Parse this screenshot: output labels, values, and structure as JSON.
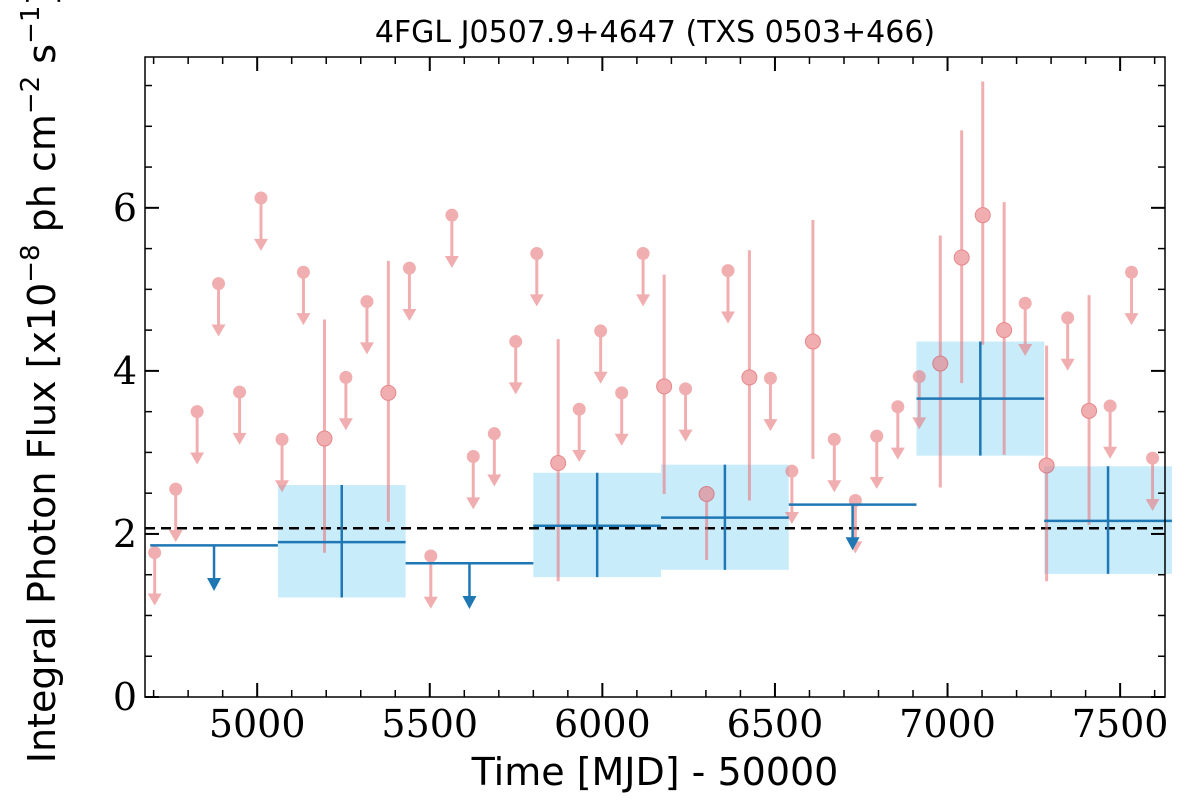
{
  "chart_data": {
    "type": "scatter",
    "title": "4FGL J0507.9+4647 (TXS 0503+466)",
    "xlabel": "Time [MJD] - 50000",
    "ylabel_parts": [
      "Integral Photon Flux [x10",
      "−8",
      " ph cm",
      "−2",
      " s",
      "−1",
      "]"
    ],
    "xlim": [
      4675,
      7630
    ],
    "ylim": [
      0,
      7.85
    ],
    "x_ticks": [
      5000,
      5500,
      6000,
      6500,
      7000,
      7500
    ],
    "x_tick_labels": [
      "5000",
      "5500",
      "6000",
      "6500",
      "7000",
      "7500"
    ],
    "y_ticks": [
      0,
      2,
      4,
      6
    ],
    "y_tick_labels": [
      "0",
      "2",
      "4",
      "6"
    ],
    "mean_flux": 2.07,
    "grid": false,
    "legend": "none",
    "colors": {
      "fine_points": "#e8797d",
      "coarse_bins": "#1f77b4",
      "coarse_band": "#c9ecfb",
      "mean_line": "#000000"
    },
    "fine_upper_limits": [
      {
        "x": 4703,
        "y": 1.77
      },
      {
        "x": 4764,
        "y": 2.55
      },
      {
        "x": 4826,
        "y": 3.5
      },
      {
        "x": 4888,
        "y": 5.07
      },
      {
        "x": 4949,
        "y": 3.74
      },
      {
        "x": 5011,
        "y": 6.12
      },
      {
        "x": 5072,
        "y": 3.16
      },
      {
        "x": 5134,
        "y": 5.21
      },
      {
        "x": 5257,
        "y": 3.92
      },
      {
        "x": 5318,
        "y": 4.85
      },
      {
        "x": 5441,
        "y": 5.26
      },
      {
        "x": 5503,
        "y": 1.73
      },
      {
        "x": 5564,
        "y": 5.91
      },
      {
        "x": 5626,
        "y": 2.95
      },
      {
        "x": 5687,
        "y": 3.23
      },
      {
        "x": 5749,
        "y": 4.36
      },
      {
        "x": 5810,
        "y": 5.44
      },
      {
        "x": 5933,
        "y": 3.53
      },
      {
        "x": 5995,
        "y": 4.49
      },
      {
        "x": 6056,
        "y": 3.73
      },
      {
        "x": 6118,
        "y": 5.44
      },
      {
        "x": 6241,
        "y": 3.78
      },
      {
        "x": 6364,
        "y": 5.23
      },
      {
        "x": 6487,
        "y": 3.91
      },
      {
        "x": 6549,
        "y": 2.77
      },
      {
        "x": 6672,
        "y": 3.16
      },
      {
        "x": 6733,
        "y": 2.41
      },
      {
        "x": 6795,
        "y": 3.2
      },
      {
        "x": 6856,
        "y": 3.56
      },
      {
        "x": 6918,
        "y": 3.93
      },
      {
        "x": 7225,
        "y": 4.83
      },
      {
        "x": 7348,
        "y": 4.65
      },
      {
        "x": 7471,
        "y": 3.57
      },
      {
        "x": 7533,
        "y": 5.21
      },
      {
        "x": 7594,
        "y": 2.93
      }
    ],
    "fine_detections": [
      {
        "x": 5195,
        "y": 3.17,
        "lo": 1.77,
        "hi": 4.63
      },
      {
        "x": 5380,
        "y": 3.73,
        "lo": 2.15,
        "hi": 5.35
      },
      {
        "x": 5872,
        "y": 2.87,
        "lo": 1.42,
        "hi": 4.39
      },
      {
        "x": 6179,
        "y": 3.81,
        "lo": 2.49,
        "hi": 5.18
      },
      {
        "x": 6302,
        "y": 2.49,
        "lo": 1.68,
        "hi": 2.5
      },
      {
        "x": 6426,
        "y": 3.92,
        "lo": 2.41,
        "hi": 5.48
      },
      {
        "x": 6610,
        "y": 4.36,
        "lo": 2.92,
        "hi": 5.85
      },
      {
        "x": 6979,
        "y": 4.09,
        "lo": 2.57,
        "hi": 5.66
      },
      {
        "x": 7041,
        "y": 5.39,
        "lo": 3.85,
        "hi": 6.95
      },
      {
        "x": 7102,
        "y": 5.91,
        "lo": 4.32,
        "hi": 7.55
      },
      {
        "x": 7164,
        "y": 4.5,
        "lo": 2.97,
        "hi": 6.07
      },
      {
        "x": 7287,
        "y": 2.84,
        "lo": 1.42,
        "hi": 4.31
      },
      {
        "x": 7410,
        "y": 3.51,
        "lo": 2.11,
        "hi": 4.93
      }
    ],
    "coarse_upper_limits": [
      {
        "x0": 4690,
        "x1": 5060,
        "y": 1.86
      },
      {
        "x0": 5430,
        "x1": 5800,
        "y": 1.64
      },
      {
        "x0": 6540,
        "x1": 6910,
        "y": 2.36
      }
    ],
    "coarse_detections": [
      {
        "x0": 5060,
        "x1": 5430,
        "y": 1.9,
        "lo": 1.22,
        "hi": 2.6
      },
      {
        "x0": 5800,
        "x1": 6170,
        "y": 2.1,
        "lo": 1.47,
        "hi": 2.75
      },
      {
        "x0": 6170,
        "x1": 6540,
        "y": 2.2,
        "lo": 1.56,
        "hi": 2.85
      },
      {
        "x0": 6910,
        "x1": 7280,
        "y": 3.66,
        "lo": 2.96,
        "hi": 4.36
      },
      {
        "x0": 7280,
        "x1": 7650,
        "y": 2.16,
        "lo": 1.51,
        "hi": 2.83
      }
    ]
  }
}
